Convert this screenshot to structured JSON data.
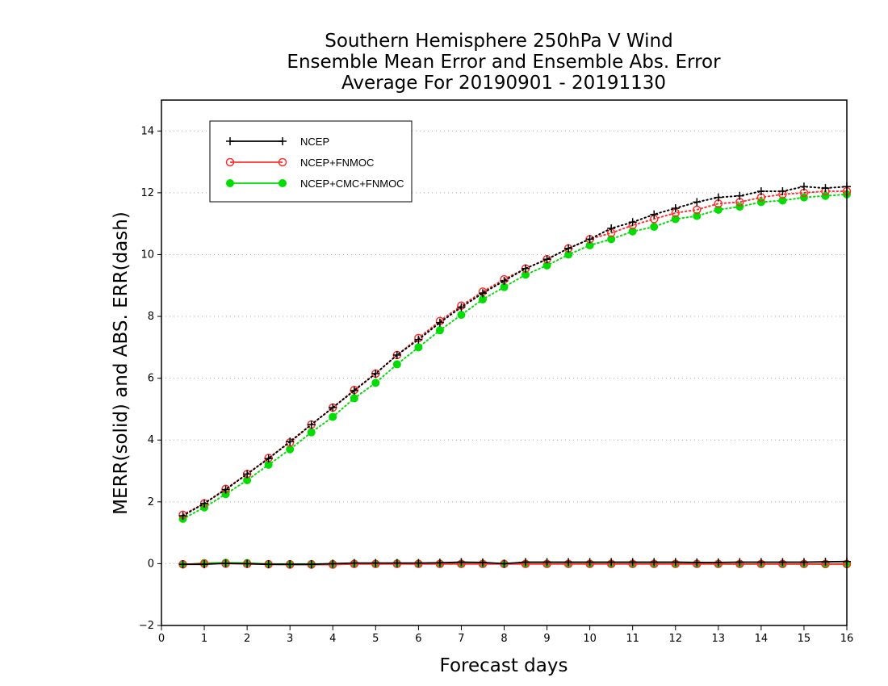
{
  "chart_data": {
    "type": "line",
    "title": [
      "Southern Hemisphere 250hPa V Wind",
      "Ensemble Mean Error and Ensemble Abs. Error",
      "Average For 20190901 - 20191130"
    ],
    "xlabel": "Forecast days",
    "ylabel": "MERR(solid) and ABS. ERR(dash)",
    "xlim": [
      0,
      16
    ],
    "ylim": [
      -2,
      15
    ],
    "xticks": [
      0,
      1,
      2,
      3,
      4,
      5,
      6,
      7,
      8,
      9,
      10,
      11,
      12,
      13,
      14,
      15,
      16
    ],
    "yticks": [
      -2,
      0,
      2,
      4,
      6,
      8,
      10,
      12,
      14
    ],
    "grid": "horizontal dotted",
    "legend_position": "top-left",
    "x": [
      0.5,
      1,
      1.5,
      2,
      2.5,
      3,
      3.5,
      4,
      4.5,
      5,
      5.5,
      6,
      6.5,
      7,
      7.5,
      8,
      8.5,
      9,
      9.5,
      10,
      10.5,
      11,
      11.5,
      12,
      12.5,
      13,
      13.5,
      14,
      14.5,
      15,
      15.5,
      16
    ],
    "series": [
      {
        "name": "NCEP",
        "color": "#000000",
        "marker": "plus",
        "abs_err": [
          1.55,
          1.95,
          2.4,
          2.9,
          3.4,
          3.95,
          4.5,
          5.05,
          5.6,
          6.15,
          6.75,
          7.25,
          7.8,
          8.3,
          8.75,
          9.15,
          9.55,
          9.85,
          10.2,
          10.5,
          10.85,
          11.05,
          11.3,
          11.5,
          11.7,
          11.85,
          11.9,
          12.05,
          12.05,
          12.2,
          12.15,
          12.2
        ],
        "mean_err": [
          -0.02,
          -0.02,
          0.01,
          0.0,
          -0.02,
          -0.02,
          -0.02,
          0.0,
          0.02,
          0.02,
          0.02,
          0.02,
          0.03,
          0.05,
          0.04,
          0.0,
          0.05,
          0.05,
          0.05,
          0.05,
          0.05,
          0.05,
          0.05,
          0.05,
          0.04,
          0.04,
          0.05,
          0.05,
          0.05,
          0.05,
          0.06,
          0.07
        ]
      },
      {
        "name": "NCEP+FNMOC",
        "color": "#ff3030",
        "marker": "open-circle",
        "abs_err": [
          1.58,
          1.95,
          2.42,
          2.9,
          3.42,
          3.92,
          4.5,
          5.05,
          5.62,
          6.15,
          6.75,
          7.3,
          7.85,
          8.35,
          8.8,
          9.2,
          9.55,
          9.85,
          10.2,
          10.5,
          10.7,
          10.95,
          11.15,
          11.35,
          11.45,
          11.65,
          11.7,
          11.85,
          11.95,
          12.0,
          12.05,
          12.05
        ],
        "mean_err": [
          -0.02,
          0.0,
          0.0,
          -0.01,
          -0.02,
          -0.03,
          -0.03,
          -0.03,
          -0.01,
          -0.01,
          -0.01,
          -0.01,
          -0.01,
          -0.01,
          -0.01,
          -0.01,
          -0.01,
          -0.01,
          -0.01,
          -0.01,
          -0.01,
          -0.01,
          -0.01,
          -0.01,
          -0.01,
          -0.01,
          -0.01,
          -0.01,
          -0.01,
          -0.01,
          -0.01,
          -0.01
        ]
      },
      {
        "name": "NCEP+CMC+FNMOC",
        "color": "#00dd00",
        "marker": "filled-circle",
        "abs_err": [
          1.45,
          1.82,
          2.25,
          2.7,
          3.2,
          3.7,
          4.25,
          4.75,
          5.35,
          5.85,
          6.45,
          7.0,
          7.55,
          8.05,
          8.55,
          8.95,
          9.35,
          9.65,
          10.0,
          10.3,
          10.5,
          10.75,
          10.9,
          11.15,
          11.25,
          11.45,
          11.55,
          11.7,
          11.75,
          11.85,
          11.9,
          11.95
        ],
        "mean_err": [
          -0.03,
          0.02,
          0.03,
          0.02,
          -0.01,
          -0.01,
          -0.01,
          -0.01,
          0.0,
          0.0,
          0.01,
          0.0,
          0.0,
          0.0,
          0.0,
          0.0,
          0.0,
          0.0,
          0.0,
          0.0,
          0.0,
          0.0,
          0.0,
          0.0,
          0.0,
          -0.01,
          -0.01,
          -0.01,
          -0.01,
          -0.01,
          -0.02,
          -0.02
        ]
      }
    ]
  }
}
